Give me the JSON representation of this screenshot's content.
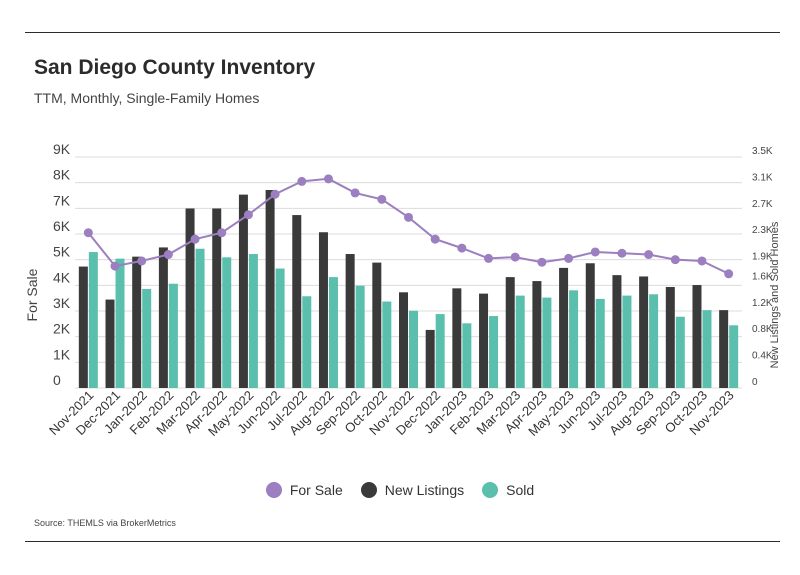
{
  "header": {
    "title": "San Diego County Inventory",
    "subtitle": "TTM, Monthly, Single-Family Homes"
  },
  "footer": {
    "source": "Source:  THEMLS via BrokerMetrics"
  },
  "colors": {
    "for_sale": "#9b7fc0",
    "new_listings": "#3a3a3a",
    "sold": "#5bbfae",
    "grid": "#dcdcdc"
  },
  "chart_data": {
    "type": "bar",
    "title": "San Diego County Inventory",
    "subtitle": "TTM, Monthly, Single-Family Homes",
    "categories": [
      "Nov-2021",
      "Dec-2021",
      "Jan-2022",
      "Feb-2022",
      "Mar-2022",
      "Apr-2022",
      "May-2022",
      "Jun-2022",
      "Jul-2022",
      "Aug-2022",
      "Sep-2022",
      "Oct-2022",
      "Nov-2022",
      "Dec-2022",
      "Jan-2023",
      "Feb-2023",
      "Mar-2023",
      "Apr-2023",
      "May-2023",
      "Jun-2023",
      "Jul-2023",
      "Aug-2023",
      "Sep-2023",
      "Oct-2023",
      "Nov-2023"
    ],
    "y_left": {
      "label": "For Sale",
      "ylim": [
        0,
        9000
      ],
      "ticks": [
        0,
        1000,
        2000,
        3000,
        4000,
        5000,
        6000,
        7000,
        8000,
        9000
      ],
      "tick_labels": [
        "0",
        "1K",
        "2K",
        "3K",
        "4K",
        "5K",
        "6K",
        "7K",
        "8K",
        "9K"
      ]
    },
    "y_right": {
      "label": "New Listings and Sold Homes",
      "ylim": [
        0,
        3500
      ],
      "ticks": [
        0,
        400,
        800,
        1200,
        1600,
        1900,
        2300,
        2700,
        3100,
        3500
      ],
      "tick_labels": [
        "0",
        "0.4K",
        "0.8K",
        "1.2K",
        "1.6K",
        "1.9K",
        "2.3K",
        "2.7K",
        "3.1K",
        "3.5K"
      ]
    },
    "series": [
      {
        "name": "For Sale",
        "type": "line",
        "axis": "left",
        "values": [
          6050,
          4750,
          4950,
          5200,
          5800,
          6050,
          6750,
          7550,
          8050,
          8150,
          7600,
          7350,
          6650,
          5800,
          5450,
          5050,
          5100,
          4900,
          5050,
          5300,
          5250,
          5200,
          5000,
          4950,
          4450
        ]
      },
      {
        "name": "New Listings",
        "type": "bar",
        "axis": "right",
        "values": [
          1840,
          1340,
          1990,
          2130,
          2720,
          2720,
          2930,
          3000,
          2620,
          2360,
          2030,
          1900,
          1450,
          880,
          1510,
          1430,
          1680,
          1620,
          1820,
          1890,
          1710,
          1690,
          1530,
          1560,
          1180
        ]
      },
      {
        "name": "Sold",
        "type": "bar",
        "axis": "right",
        "values": [
          2060,
          1960,
          1500,
          1580,
          2110,
          1980,
          2030,
          1810,
          1390,
          1680,
          1550,
          1310,
          1170,
          1120,
          980,
          1090,
          1400,
          1370,
          1480,
          1350,
          1400,
          1420,
          1080,
          1180,
          950
        ]
      }
    ],
    "legend": {
      "placement": "bottom-center",
      "entries": [
        "For Sale",
        "New Listings",
        "Sold"
      ]
    },
    "grid": true
  }
}
